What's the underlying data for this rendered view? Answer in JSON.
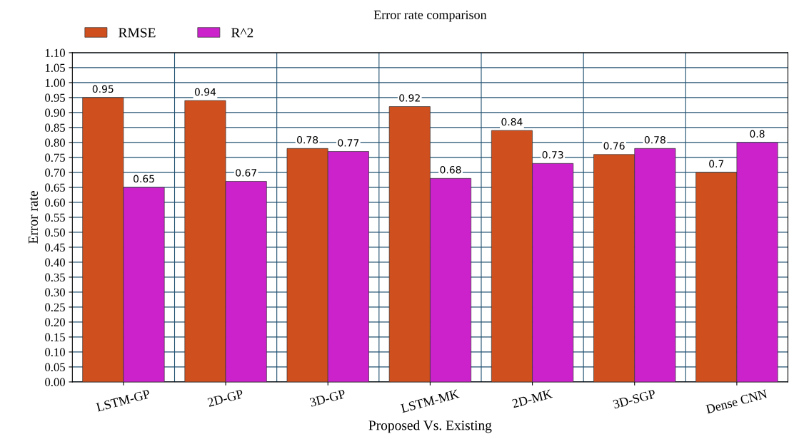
{
  "chart_data": {
    "type": "bar",
    "title": "Error rate comparison",
    "xlabel": "Proposed Vs. Existing",
    "ylabel": "Error rate",
    "categories": [
      "LSTM-GP",
      "2D-GP",
      "3D-GP",
      "LSTM-MK",
      "2D-MK",
      "3D-SGP",
      "Dense CNN"
    ],
    "series": [
      {
        "name": "RMSE",
        "color": "#d04f1e",
        "values": [
          0.95,
          0.94,
          0.78,
          0.92,
          0.84,
          0.76,
          0.7
        ]
      },
      {
        "name": "R^2",
        "color": "#cc22cc",
        "values": [
          0.65,
          0.67,
          0.77,
          0.68,
          0.73,
          0.78,
          0.8
        ]
      }
    ],
    "ylim": [
      0,
      1.1
    ],
    "yticks": [
      {
        "value": 0,
        "label": "0.00"
      },
      {
        "value": 0.05,
        "label": "0.05"
      },
      {
        "value": 0.1,
        "label": "0.10"
      },
      {
        "value": 0.15,
        "label": "0.15"
      },
      {
        "value": 0.2,
        "label": "0.20"
      },
      {
        "value": 0.25,
        "label": "0.25"
      },
      {
        "value": 0.3,
        "label": "0.30"
      },
      {
        "value": 0.35,
        "label": "0.35"
      },
      {
        "value": 0.4,
        "label": "0.40"
      },
      {
        "value": 0.45,
        "label": "0.45"
      },
      {
        "value": 0.5,
        "label": "0.50"
      },
      {
        "value": 0.55,
        "label": "0.55"
      },
      {
        "value": 0.6,
        "label": "0.60"
      },
      {
        "value": 0.65,
        "label": "0.65"
      },
      {
        "value": 0.7,
        "label": "0.70"
      },
      {
        "value": 0.75,
        "label": "0.75"
      },
      {
        "value": 0.8,
        "label": "0.80"
      },
      {
        "value": 0.85,
        "label": "0.85"
      },
      {
        "value": 0.9,
        "label": "0.90"
      },
      {
        "value": 0.95,
        "label": "0.95"
      },
      {
        "value": 1,
        "label": "1.00"
      },
      {
        "value": 1.05,
        "label": "1.05"
      },
      {
        "value": 1.1,
        "label": "1.10"
      }
    ],
    "grid": true,
    "legend": "top left",
    "data_labels": true
  }
}
